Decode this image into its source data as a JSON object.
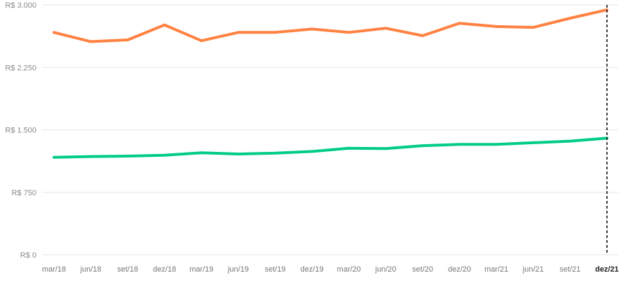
{
  "chart_data": {
    "type": "line",
    "title": "",
    "xlabel": "",
    "ylabel": "",
    "ylim": [
      0,
      3000
    ],
    "y_ticks": [
      0,
      750,
      1500,
      2250,
      3000
    ],
    "y_tick_labels": [
      "R$ 0",
      "R$ 750",
      "R$ 1.500",
      "R$ 2.250",
      "R$ 3.000"
    ],
    "categories": [
      "mar/18",
      "jun/18",
      "set/18",
      "dez/18",
      "mar/19",
      "jun/19",
      "set/19",
      "dez/19",
      "mar/20",
      "jun/20",
      "set/20",
      "dez/20",
      "mar/21",
      "jun/21",
      "set/21",
      "dez/21"
    ],
    "highlighted_category": "dez/21",
    "grid": true,
    "series": [
      {
        "color": "#ff8243",
        "values": [
          2670,
          2560,
          2580,
          2760,
          2570,
          2670,
          2670,
          2710,
          2670,
          2720,
          2630,
          2780,
          2740,
          2730,
          2840,
          2940
        ]
      },
      {
        "color": "#00cc85",
        "values": [
          1170,
          1180,
          1185,
          1195,
          1225,
          1210,
          1220,
          1240,
          1280,
          1275,
          1310,
          1325,
          1325,
          1345,
          1365,
          1400
        ]
      }
    ]
  }
}
